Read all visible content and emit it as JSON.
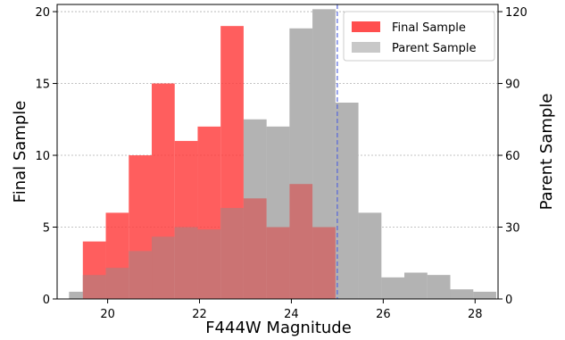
{
  "chart_data": {
    "type": "bar",
    "xlabel": "F444W Magnitude",
    "ylabel_left": "Final Sample",
    "ylabel_right": "Parent Sample",
    "xlim": [
      18.9,
      28.5
    ],
    "ylim_left": [
      0,
      20.5
    ],
    "ylim_right": [
      0,
      123
    ],
    "x_ticks": [
      20,
      22,
      24,
      26,
      28
    ],
    "y_ticks_left": [
      0,
      5,
      10,
      15,
      20
    ],
    "y_ticks_right": [
      0,
      30,
      60,
      90,
      120
    ],
    "grid": "horizontal-dotted",
    "legend_position": "top-right",
    "cutoff_line": {
      "x": 25.0,
      "style": "dashed",
      "color": "#5566dd"
    },
    "series": [
      {
        "name": "Parent Sample",
        "axis": "right",
        "color": "#c8c8c8",
        "bins": [
          {
            "start": 19.16,
            "end": 19.46,
            "value": 3
          },
          {
            "start": 19.46,
            "end": 19.96,
            "value": 10
          },
          {
            "start": 19.96,
            "end": 20.46,
            "value": 13
          },
          {
            "start": 20.46,
            "end": 20.96,
            "value": 20
          },
          {
            "start": 20.96,
            "end": 21.46,
            "value": 26
          },
          {
            "start": 21.46,
            "end": 21.96,
            "value": 30
          },
          {
            "start": 21.96,
            "end": 22.46,
            "value": 29
          },
          {
            "start": 22.46,
            "end": 22.96,
            "value": 38
          },
          {
            "start": 22.96,
            "end": 23.46,
            "value": 75
          },
          {
            "start": 23.46,
            "end": 23.96,
            "value": 72
          },
          {
            "start": 23.96,
            "end": 24.46,
            "value": 113
          },
          {
            "start": 24.46,
            "end": 24.96,
            "value": 121
          },
          {
            "start": 24.96,
            "end": 25.46,
            "value": 82
          },
          {
            "start": 25.46,
            "end": 25.96,
            "value": 36
          },
          {
            "start": 25.96,
            "end": 26.46,
            "value": 9
          },
          {
            "start": 26.46,
            "end": 26.96,
            "value": 11
          },
          {
            "start": 26.96,
            "end": 27.46,
            "value": 10
          },
          {
            "start": 27.46,
            "end": 27.96,
            "value": 4
          },
          {
            "start": 27.96,
            "end": 28.46,
            "value": 3
          }
        ]
      },
      {
        "name": "Final Sample",
        "axis": "left",
        "color": "#ff3b3b",
        "bins": [
          {
            "start": 19.46,
            "end": 19.96,
            "value": 4
          },
          {
            "start": 19.96,
            "end": 20.46,
            "value": 6
          },
          {
            "start": 20.46,
            "end": 20.96,
            "value": 10
          },
          {
            "start": 20.96,
            "end": 21.46,
            "value": 15
          },
          {
            "start": 21.46,
            "end": 21.96,
            "value": 11
          },
          {
            "start": 21.96,
            "end": 22.46,
            "value": 12
          },
          {
            "start": 22.46,
            "end": 22.96,
            "value": 19
          },
          {
            "start": 22.96,
            "end": 23.46,
            "value": 7
          },
          {
            "start": 23.46,
            "end": 23.96,
            "value": 5
          },
          {
            "start": 23.96,
            "end": 24.46,
            "value": 8
          },
          {
            "start": 24.46,
            "end": 24.96,
            "value": 5
          }
        ]
      }
    ]
  },
  "legend": {
    "items": [
      {
        "label": "Final Sample",
        "color": "#ff3b3b"
      },
      {
        "label": "Parent Sample",
        "color": "#c8c8c8"
      }
    ]
  }
}
